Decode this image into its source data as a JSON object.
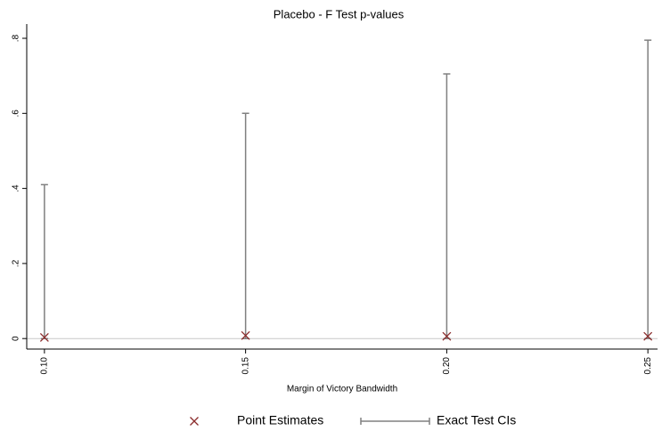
{
  "chart_data": {
    "type": "errorbar",
    "title": "Placebo - F Test p-values",
    "x_label": "Margin of Victory Bandwidth",
    "x": [
      0.1,
      0.15,
      0.2,
      0.25
    ],
    "series": [
      {
        "name": "Point Estimates",
        "color": "#8b2c2c",
        "values": [
          0.003,
          0.008,
          0.006,
          0.006
        ]
      },
      {
        "name": "Exact Test CIs",
        "color": "#808080",
        "low": [
          0,
          0,
          0,
          0
        ],
        "high": [
          0.41,
          0.6,
          0.705,
          0.795
        ]
      }
    ],
    "xlim": [
      0.0956,
      0.2524
    ],
    "ylim": [
      -0.028,
      0.838
    ],
    "xticks": [
      {
        "value": 0.1,
        "label": "0.10"
      },
      {
        "value": 0.15,
        "label": "0.15"
      },
      {
        "value": 0.2,
        "label": "0.20"
      },
      {
        "value": 0.25,
        "label": "0.25"
      }
    ],
    "yticks": [
      {
        "value": 0,
        "label": "0"
      },
      {
        "value": 0.2,
        "label": ".2"
      },
      {
        "value": 0.4,
        "label": ".4"
      },
      {
        "value": 0.6,
        "label": ".6"
      },
      {
        "value": 0.8,
        "label": ".8"
      }
    ],
    "reference_line": 0,
    "grid": false,
    "legend": "bottom"
  }
}
